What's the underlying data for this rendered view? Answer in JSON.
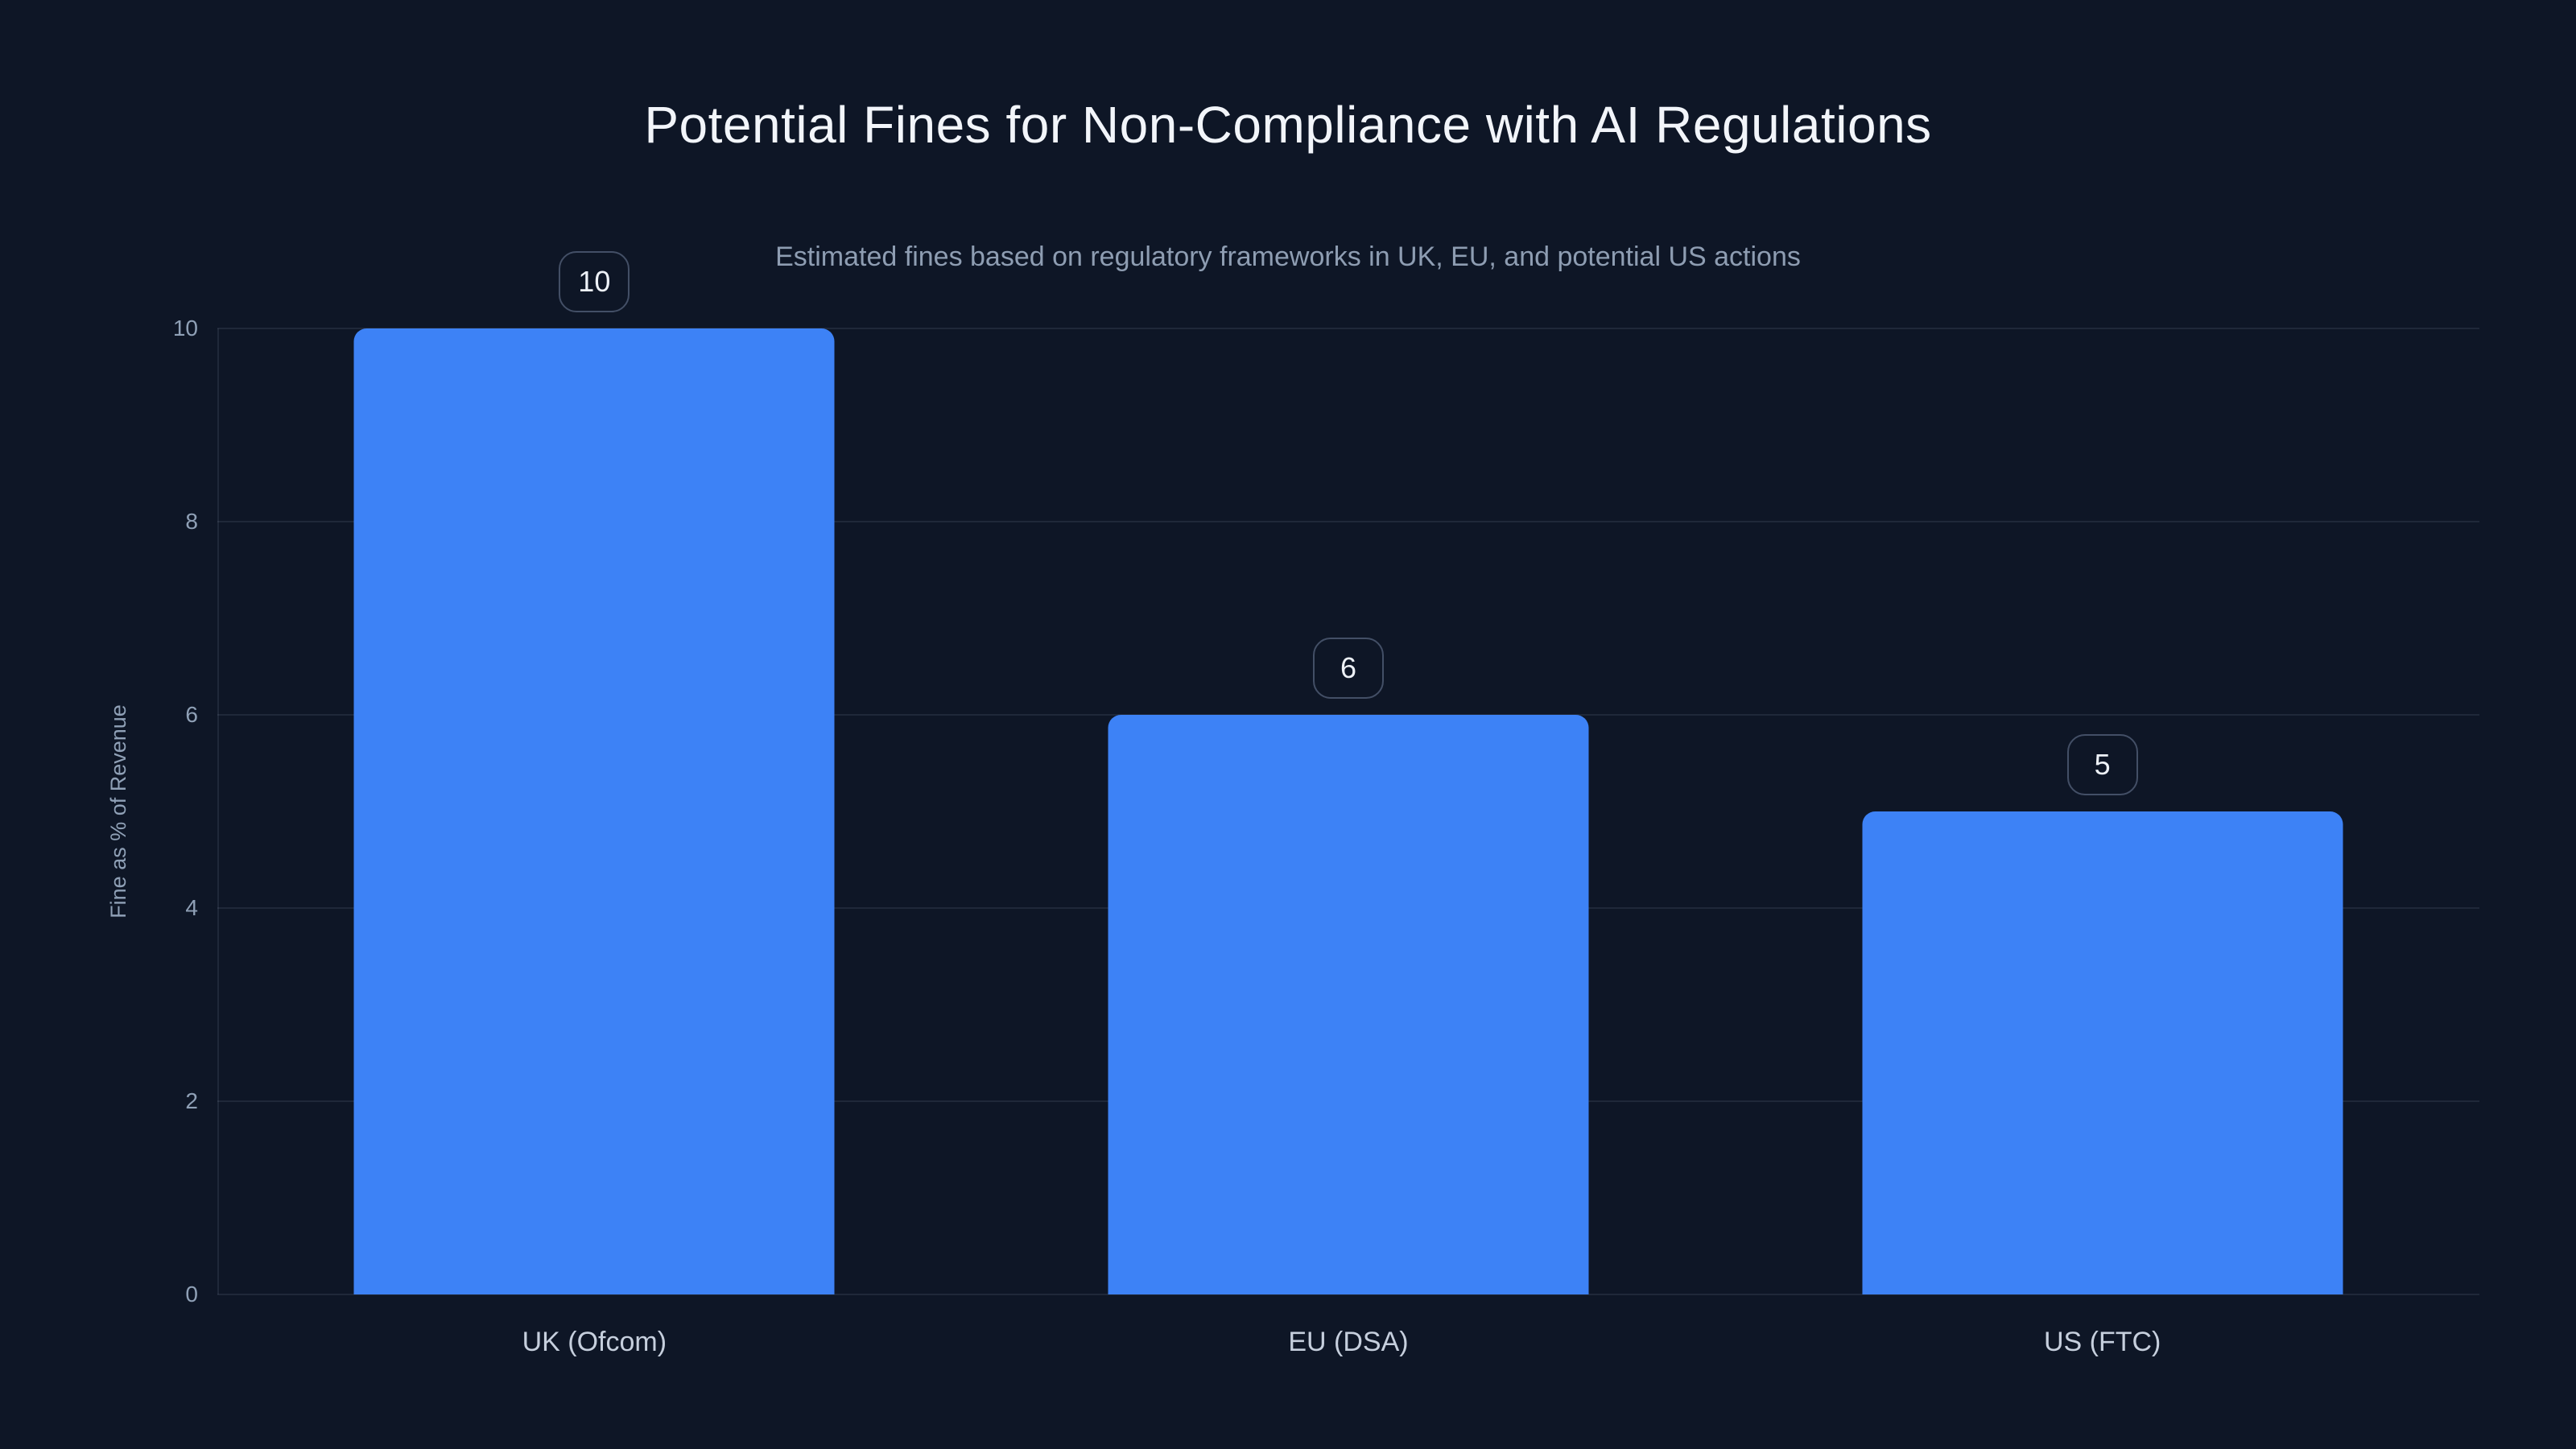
{
  "theme": {
    "bg": "#0e1626",
    "bar": "#3d82f6",
    "grid": "rgba(148, 163, 184, 0.13)",
    "titlecolor": "#f2f5fa",
    "subtitlecolor": "#8e9db2",
    "tickcolor": "#8fa0b6",
    "xlabelcolor": "#c6cfdd",
    "badgeborder": "#434f66",
    "badgetext": "#edf1f7"
  },
  "chart_data": {
    "type": "bar",
    "title": "Potential Fines for Non-Compliance with AI Regulations",
    "subtitle": "Estimated fines based on regulatory frameworks in UK, EU, and potential US actions",
    "categories": [
      "UK (Ofcom)",
      "EU (DSA)",
      "US (FTC)"
    ],
    "values": [
      10,
      6,
      5
    ],
    "value_labels": [
      "10",
      "6",
      "5"
    ],
    "xlabel": "",
    "ylabel": "Fine as % of Revenue",
    "ylim": [
      0,
      10
    ],
    "yticks": [
      0,
      2,
      4,
      6,
      8,
      10
    ],
    "grid": "horizontal-only",
    "legend": "none",
    "bar_corner": "rounded-top",
    "value_label_style": "bordered-rounded-badge-above-bar"
  }
}
